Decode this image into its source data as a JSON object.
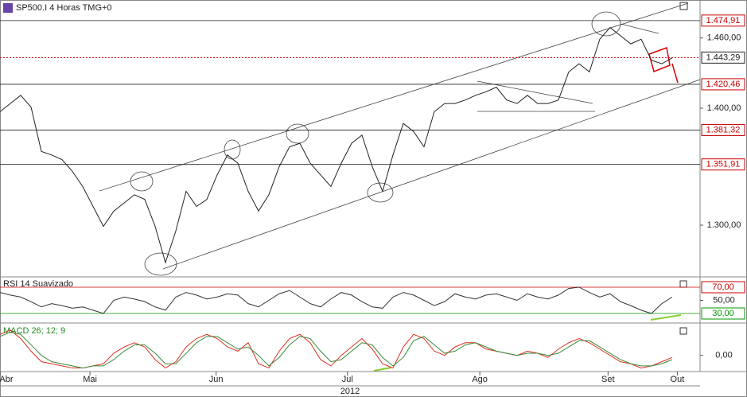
{
  "chart_data": [
    {
      "type": "line",
      "title": "SP500.I 4 Horas TMG+0",
      "color": "#222222",
      "x": [
        0,
        1,
        2,
        3,
        4,
        5,
        6,
        7,
        8,
        9,
        10,
        11,
        12,
        13,
        14,
        15,
        16,
        17,
        18,
        19,
        20,
        21,
        22,
        23,
        24,
        25,
        26,
        27,
        28,
        29,
        30,
        31,
        32,
        33,
        34,
        35,
        36,
        37,
        38,
        39,
        40,
        41,
        42,
        43,
        44,
        45,
        46,
        47,
        48,
        49,
        50,
        51,
        52,
        53,
        54,
        55,
        56,
        57,
        58,
        59,
        60,
        61,
        62,
        63,
        64,
        65
      ],
      "values": [
        1397,
        1404,
        1411,
        1401,
        1363,
        1360,
        1356,
        1346,
        1333,
        1316,
        1299,
        1312,
        1319,
        1326,
        1322,
        1299,
        1268,
        1295,
        1329,
        1316,
        1322,
        1343,
        1360,
        1353,
        1329,
        1312,
        1326,
        1350,
        1367,
        1370,
        1353,
        1343,
        1333,
        1353,
        1370,
        1377,
        1350,
        1329,
        1360,
        1387,
        1380,
        1367,
        1397,
        1404,
        1404,
        1407,
        1411,
        1414,
        1418,
        1407,
        1404,
        1411,
        1404,
        1404,
        1407,
        1431,
        1438,
        1431,
        1459,
        1469,
        1462,
        1455,
        1459,
        1441,
        1438,
        1443
      ],
      "xlim": [
        0,
        67.7
      ],
      "ylim": [
        1255.8,
        1492.5
      ],
      "yticks": [
        {
          "value": 1300,
          "label": "1.300,00"
        },
        {
          "value": 1400,
          "label": "1.400,00"
        },
        {
          "value": 1460,
          "label": "1.460,00"
        }
      ],
      "levels": [
        {
          "value": 1474.91,
          "label": "1.474,91"
        },
        {
          "value": 1420.46,
          "label": "1.420,46"
        },
        {
          "value": 1381.32,
          "label": "1.381,32"
        },
        {
          "value": 1351.91,
          "label": "1.351,91"
        }
      ],
      "current": {
        "value": 1443.29,
        "label": "1.443,29"
      },
      "xticks": [
        {
          "value": 0,
          "label": "Abr"
        },
        {
          "value": 8.7,
          "label": "Mai"
        },
        {
          "value": 20.9,
          "label": "Jun"
        },
        {
          "value": 33.6,
          "label": "Jul"
        },
        {
          "value": 46.4,
          "label": "Ago"
        },
        {
          "value": 58.8,
          "label": "Set"
        },
        {
          "value": 65.5,
          "label": "Out"
        }
      ],
      "xlabel": "2012"
    },
    {
      "type": "line",
      "title": "RSI 14 Suavizado",
      "color": "#333333",
      "values": [
        62,
        58,
        55,
        48,
        40,
        45,
        42,
        38,
        40,
        35,
        30,
        50,
        55,
        52,
        48,
        40,
        35,
        55,
        62,
        58,
        52,
        55,
        60,
        58,
        45,
        40,
        50,
        60,
        65,
        55,
        45,
        40,
        52,
        62,
        58,
        48,
        40,
        38,
        55,
        62,
        58,
        50,
        42,
        48,
        60,
        55,
        52,
        58,
        60,
        55,
        50,
        60,
        55,
        52,
        58,
        68,
        70,
        62,
        55,
        60,
        48,
        42,
        35,
        30,
        45,
        55
      ],
      "ylim": [
        16.7,
        83.3
      ],
      "yticks": [
        {
          "value": 50,
          "label": "50,00"
        }
      ],
      "levels": [
        {
          "value": 70,
          "label": "70,00",
          "color": "#cc0000"
        },
        {
          "value": 30,
          "label": "30,00",
          "color": "#009900"
        }
      ]
    },
    {
      "type": "line",
      "title": "MACD 26; 12; 9",
      "series": [
        {
          "color": "#e03020",
          "values": [
            10,
            12,
            8,
            2,
            -3,
            -4,
            -5,
            -6,
            -6,
            -5,
            -4,
            1,
            4,
            6,
            4,
            -2,
            -6,
            -3,
            4,
            8,
            10,
            8,
            4,
            2,
            6,
            -4,
            -6,
            2,
            8,
            10,
            6,
            -2,
            -5,
            0,
            4,
            8,
            3,
            -4,
            -6,
            4,
            10,
            8,
            2,
            0,
            4,
            6,
            6,
            3,
            2,
            1,
            0,
            2,
            1,
            -1,
            3,
            6,
            8,
            6,
            3,
            0,
            -3,
            -4,
            -6,
            -5,
            -3,
            -1
          ]
        },
        {
          "color": "#3a8a3a",
          "values": [
            9,
            11,
            10,
            5,
            0,
            -3,
            -4,
            -5,
            -6,
            -5,
            -5,
            -2,
            2,
            5,
            5,
            1,
            -4,
            -4,
            1,
            6,
            9,
            9,
            6,
            3,
            4,
            0,
            -5,
            -1,
            5,
            9,
            8,
            2,
            -3,
            -2,
            2,
            6,
            5,
            -1,
            -5,
            -1,
            7,
            9,
            5,
            1,
            2,
            5,
            6,
            4,
            2,
            1,
            0,
            1,
            1,
            0,
            1,
            4,
            7,
            7,
            4,
            1,
            -2,
            -4,
            -5,
            -5,
            -4,
            -2
          ]
        }
      ],
      "ylim": [
        -7.3,
        15
      ],
      "yticks": [
        {
          "value": 0,
          "label": "0,00"
        }
      ]
    }
  ]
}
